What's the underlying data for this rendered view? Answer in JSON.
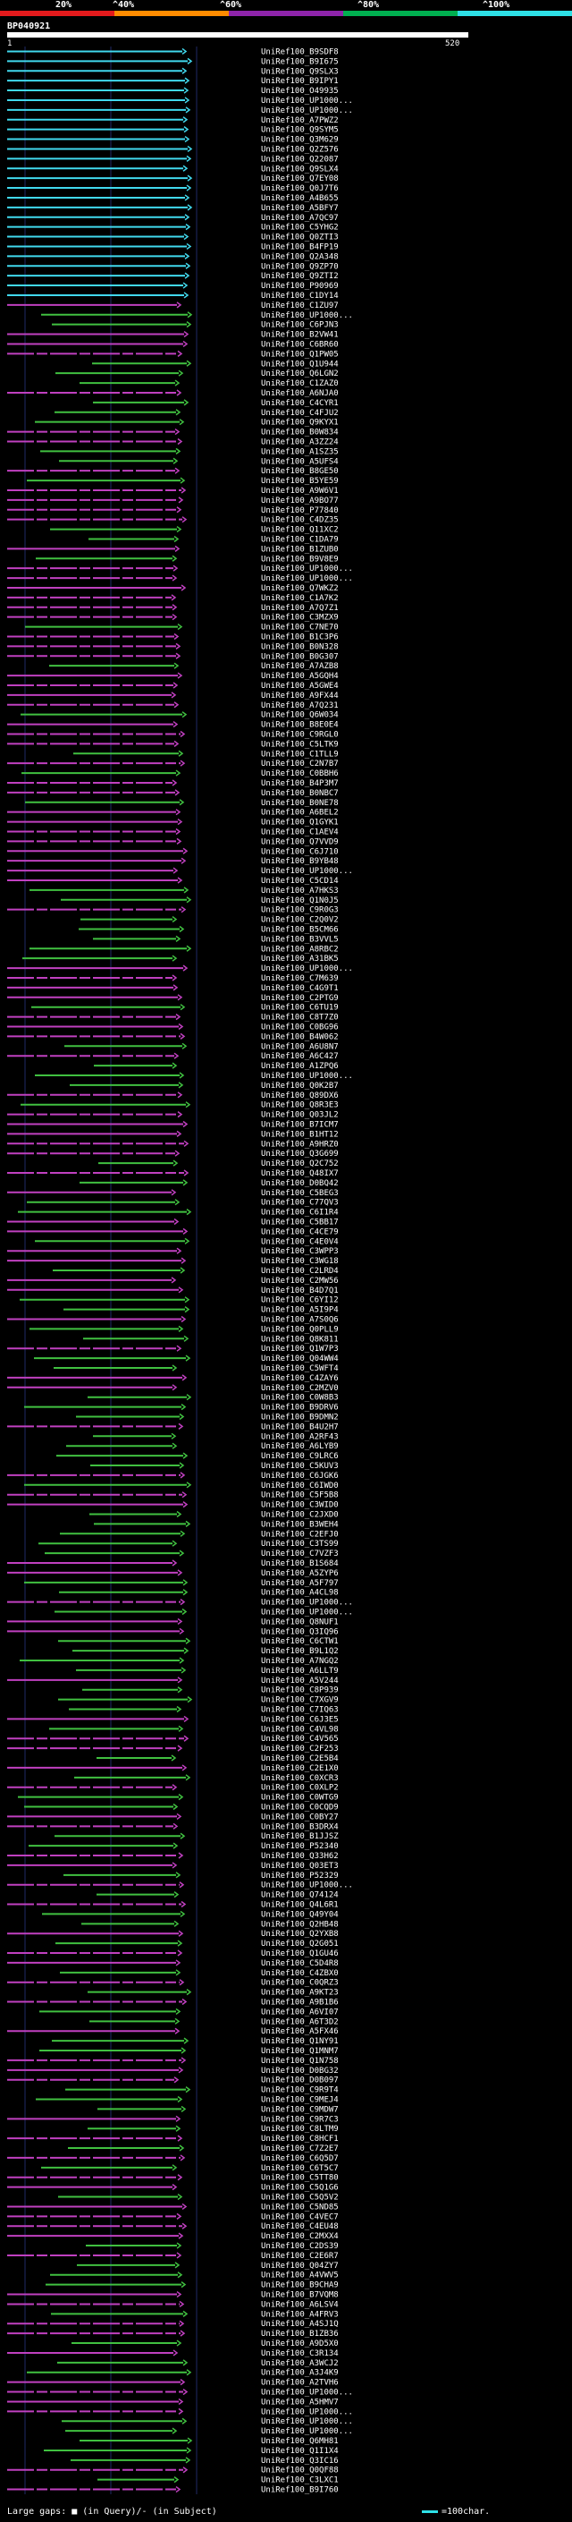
{
  "legend": {
    "labels": [
      "20%",
      "^40%",
      "^60%",
      "^80%",
      "^100%"
    ],
    "colors": [
      "#e31a1c",
      "#ff8c00",
      "#8e24aa",
      "#00b050",
      "#2ee0e6"
    ]
  },
  "query": {
    "id": "BP040921",
    "length_start": "1",
    "length_end": "520"
  },
  "hit_colors": {
    "cyan": "#41d9ee",
    "magenta": "#c040c0",
    "green": "#40c040"
  },
  "hits": [
    "UniRef100_B9SDF8",
    "UniRef100_B9I675",
    "UniRef100_Q9SLX3",
    "UniRef100_B9IPY1",
    "UniRef100_O49935",
    "UniRef100_UP1000...",
    "UniRef100_UP1000...",
    "UniRef100_A7PWZ2",
    "UniRef100_Q9SYM5",
    "UniRef100_Q3M629",
    "UniRef100_Q2Z576",
    "UniRef100_Q22087",
    "UniRef100_Q9SLX4",
    "UniRef100_Q7EY08",
    "UniRef100_Q0J7T6",
    "UniRef100_A4B655",
    "UniRef100_A5BFY7",
    "UniRef100_A7QC97",
    "UniRef100_C5YHG2",
    "UniRef100_Q0ZTI3",
    "UniRef100_B4FP19",
    "UniRef100_Q2A348",
    "UniRef100_Q9ZP70",
    "UniRef100_Q9ZTI2",
    "UniRef100_P90969",
    "UniRef100_C1DY14",
    "UniRef100_C1ZU97",
    "UniRef100_UP1000...",
    "UniRef100_C6PJN3",
    "UniRef100_B2VW41",
    "UniRef100_C6BR60",
    "UniRef100_Q1PW05",
    "UniRef100_Q1U944",
    "UniRef100_Q6LGN2",
    "UniRef100_C1ZAZ0",
    "UniRef100_A6NJA0",
    "UniRef100_C4CYR1",
    "UniRef100_C4FJU2",
    "UniRef100_Q9KYX1",
    "UniRef100_B0W834",
    "UniRef100_A3ZZ24",
    "UniRef100_A1SZ35",
    "UniRef100_A5UFS4",
    "UniRef100_B8GE50",
    "UniRef100_B5YE59",
    "UniRef100_A9W6V1",
    "UniRef100_A9BO77",
    "UniRef100_P77840",
    "UniRef100_C4DZ35",
    "UniRef100_Q11XC2",
    "UniRef100_C1DA79",
    "UniRef100_B1ZUB0",
    "UniRef100_B9V8E9",
    "UniRef100_UP1000...",
    "UniRef100_UP1000...",
    "UniRef100_Q7WKZ2",
    "UniRef100_C1A7K2",
    "UniRef100_A7Q7Z1",
    "UniRef100_C3MZX9",
    "UniRef100_C7NE70",
    "UniRef100_B1C3P6",
    "UniRef100_B0N328",
    "UniRef100_B0G307",
    "UniRef100_A7AZB8",
    "UniRef100_A5GQH4",
    "UniRef100_A5GWE4",
    "UniRef100_A9FX44",
    "UniRef100_A7Q231",
    "UniRef100_Q6W034",
    "UniRef100_B8E0E4",
    "UniRef100_C9RGL0",
    "UniRef100_C5LTK9",
    "UniRef100_C1TLL9",
    "UniRef100_C2N7B7",
    "UniRef100_C0BBH6",
    "UniRef100_B4P3M7",
    "UniRef100_B0NBC7",
    "UniRef100_B0NE78",
    "UniRef100_A6BEL2",
    "UniRef100_Q1GYK1",
    "UniRef100_C1AEV4",
    "UniRef100_Q7VVD9",
    "UniRef100_C6J710",
    "UniRef100_B9YB48",
    "UniRef100_UP1000...",
    "UniRef100_C5CD14",
    "UniRef100_A7HKS3",
    "UniRef100_Q1N0J5",
    "UniRef100_C9R0G3",
    "UniRef100_C2Q0V2",
    "UniRef100_B5CM66",
    "UniRef100_B3VVL5",
    "UniRef100_A8RBC2",
    "UniRef100_A31BK5",
    "UniRef100_UP1000...",
    "UniRef100_C7M639",
    "UniRef100_C4G9T1",
    "UniRef100_C2PTG9",
    "UniRef100_C6TU19",
    "UniRef100_C8T7Z0",
    "UniRef100_C0BG96",
    "UniRef100_B4W062",
    "UniRef100_A6U8N7",
    "UniRef100_A6C427",
    "UniRef100_A1ZPQ6",
    "UniRef100_UP1000...",
    "UniRef100_Q0K2B7",
    "UniRef100_Q89DX6",
    "UniRef100_Q8R3E3",
    "UniRef100_Q03JL2",
    "UniRef100_B7ICM7",
    "UniRef100_B1HT12",
    "UniRef100_A9HRZ0",
    "UniRef100_Q3G699",
    "UniRef100_Q2C752",
    "UniRef100_Q48IX7",
    "UniRef100_D0BQ42",
    "UniRef100_C5BEG3",
    "UniRef100_C77QV3",
    "UniRef100_C6I1R4",
    "UniRef100_C5BB17",
    "UniRef100_C4CE79",
    "UniRef100_C4E0V4",
    "UniRef100_C3WPP3",
    "UniRef100_C3WG18",
    "UniRef100_C2LRD4",
    "UniRef100_C2MW56",
    "UniRef100_B4D7Q1",
    "UniRef100_C6YI12",
    "UniRef100_A5I9P4",
    "UniRef100_A7S0Q6",
    "UniRef100_Q0PLL9",
    "UniRef100_Q8K811",
    "UniRef100_Q1W7P3",
    "UniRef100_Q04WW4",
    "UniRef100_C5WFT4",
    "UniRef100_C4ZAY6",
    "UniRef100_C2MZV0",
    "UniRef100_C0W8B3",
    "UniRef100_B9DRV6",
    "UniRef100_B9DMN2",
    "UniRef100_B4U2H7",
    "UniRef100_A2RF43",
    "UniRef100_A6LYB9",
    "UniRef100_C9LRC6",
    "UniRef100_C5KUV3",
    "UniRef100_C6JGK6",
    "UniRef100_C6IWD0",
    "UniRef100_C5F5B8",
    "UniRef100_C3WID0",
    "UniRef100_C2JXD0",
    "UniRef100_B3WEH4",
    "UniRef100_C2EFJ0",
    "UniRef100_C3TS99",
    "UniRef100_C7VZF3",
    "UniRef100_B1S684",
    "UniRef100_A5ZYP6",
    "UniRef100_A5F797",
    "UniRef100_A4CL98",
    "UniRef100_UP1000...",
    "UniRef100_UP1000...",
    "UniRef100_Q8NUF1",
    "UniRef100_Q3IQ96",
    "UniRef100_C6CTW1",
    "UniRef100_B9L1Q2",
    "UniRef100_A7NGQ2",
    "UniRef100_A6LLT9",
    "UniRef100_A5V244",
    "UniRef100_C8P939",
    "UniRef100_C7XGV9",
    "UniRef100_C7IQ63",
    "UniRef100_C6J3E5",
    "UniRef100_C4VL98",
    "UniRef100_C4V565",
    "UniRef100_C2F253",
    "UniRef100_C2E5B4",
    "UniRef100_C2E1X0",
    "UniRef100_C0XCR3",
    "UniRef100_C0XLP2",
    "UniRef100_C0WTG9",
    "UniRef100_C0CQD9",
    "UniRef100_C0BY27",
    "UniRef100_B3DRX4",
    "UniRef100_B1JJSZ",
    "UniRef100_P52340",
    "UniRef100_Q33H62",
    "UniRef100_Q03ET3",
    "UniRef100_P52329",
    "UniRef100_UP1000...",
    "UniRef100_Q74124",
    "UniRef100_Q4L6R1",
    "UniRef100_Q49Y04",
    "UniRef100_Q2HB48",
    "UniRef100_Q2YXB8",
    "UniRef100_Q2G051",
    "UniRef100_Q1GU46",
    "UniRef100_C5D4R8",
    "UniRef100_C4ZBX0",
    "UniRef100_C0QRZ3",
    "UniRef100_A9KT23",
    "UniRef100_A9B1B6",
    "UniRef100_A6VI07",
    "UniRef100_A6T3D2",
    "UniRef100_A5FX46",
    "UniRef100_Q1NY91",
    "UniRef100_Q1MNM7",
    "UniRef100_Q1N758",
    "UniRef100_D0BG32",
    "UniRef100_D0B097",
    "UniRef100_C9R9T4",
    "UniRef100_C9MEJ4",
    "UniRef100_C9MDW7",
    "UniRef100_C9R7C3",
    "UniRef100_C8LTM9",
    "UniRef100_C8HCF1",
    "UniRef100_C7Z2E7",
    "UniRef100_C6Q5D7",
    "UniRef100_C6T5C7",
    "UniRef100_C5TT80",
    "UniRef100_C5Q1G6",
    "UniRef100_C5Q5V2",
    "UniRef100_C5ND85",
    "UniRef100_C4VEC7",
    "UniRef100_C4EU48",
    "UniRef100_C2MXX4",
    "UniRef100_C2DS39",
    "UniRef100_C2E6R7",
    "UniRef100_Q04ZY7",
    "UniRef100_A4VWV5",
    "UniRef100_B9CHA9",
    "UniRef100_B7VQM8",
    "UniRef100_A6LSV4",
    "UniRef100_A4FRV3",
    "UniRef100_A4SJ1Q",
    "UniRef100_B1ZB36",
    "UniRef100_A9D5X0",
    "UniRef100_C3R134",
    "UniRef100_A3WCJ2",
    "UniRef100_A3J4K9",
    "UniRef100_A2TVH6",
    "UniRef100_UP1000...",
    "UniRef100_A5HMV7",
    "UniRef100_UP1000...",
    "UniRef100_UP1000...",
    "UniRef100_UP1000...",
    "UniRef100_Q6MH81",
    "UniRef100_Q1I1X4",
    "UniRef100_Q3IC16",
    "UniRef100_Q0QF88",
    "UniRef100_C3LXC1",
    "UniRef100_B9I760"
  ],
  "footer": {
    "large_gaps": "Large gaps: ■ (in Query)/- (in Subject)",
    "scale": "=100char."
  }
}
